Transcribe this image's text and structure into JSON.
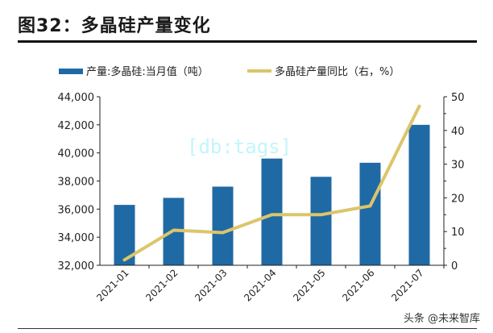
{
  "title": "图32：多晶硅产量变化",
  "watermark": "[db:tags]",
  "footer": "头条 @未来智库",
  "chart_data": {
    "type": "bar+line",
    "categories": [
      "2021-01",
      "2021-02",
      "2021-03",
      "2021-04",
      "2021-05",
      "2021-06",
      "2021-07"
    ],
    "series": [
      {
        "name": "产量:多晶硅:当月值（吨）",
        "type": "bar",
        "axis": "left",
        "color": "#1f6aa5",
        "values": [
          36300,
          36800,
          37600,
          39600,
          38300,
          39300,
          42000
        ]
      },
      {
        "name": "多晶硅产量同比（右，%）",
        "type": "line",
        "axis": "right",
        "color": "#dcc56a",
        "values": [
          1.6,
          10.4,
          9.7,
          15.0,
          15.0,
          17.6,
          47.2
        ]
      }
    ],
    "y_left": {
      "range": [
        32000,
        44000
      ],
      "ticks": [
        "32,000",
        "34,000",
        "36,000",
        "38,000",
        "40,000",
        "42,000",
        "44,000"
      ]
    },
    "y_right": {
      "range": [
        0,
        50
      ],
      "ticks": [
        "0",
        "10",
        "20",
        "30",
        "40",
        "50"
      ]
    },
    "legend_position": "top",
    "grid": false
  }
}
